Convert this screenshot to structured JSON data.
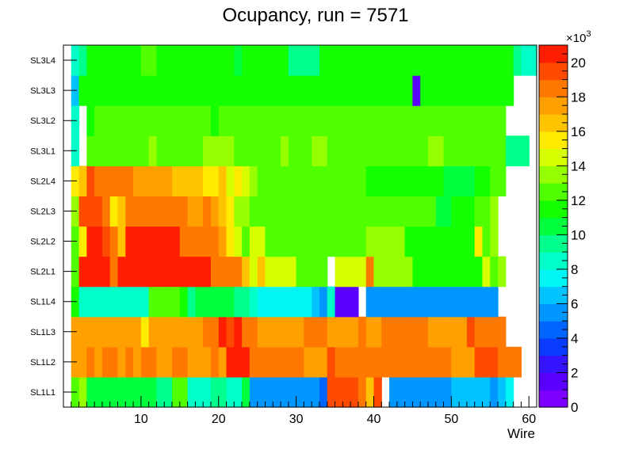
{
  "chart_data": {
    "type": "heatmap",
    "title": "Ocupancy, run = 7571",
    "xlabel": "Wire",
    "ylabel": "",
    "x_range": [
      0,
      61
    ],
    "x_ticks": [
      10,
      20,
      30,
      40,
      50,
      60
    ],
    "y_categories": [
      "SL1L1",
      "SL1L2",
      "SL1L3",
      "SL1L4",
      "SL2L1",
      "SL2L2",
      "SL2L3",
      "SL2L4",
      "SL3L1",
      "SL3L2",
      "SL3L3",
      "SL3L4"
    ],
    "z_range": [
      0,
      21
    ],
    "z_ticks": [
      0,
      2,
      4,
      6,
      8,
      10,
      12,
      14,
      16,
      18,
      20
    ],
    "z_exponent_label": "×10",
    "z_exponent_power": "3",
    "palette": [
      "#7d00ff",
      "#5a00ff",
      "#3714ff",
      "#0a3cff",
      "#0064ff",
      "#0096ff",
      "#00c3ff",
      "#00f5f5",
      "#00ffc8",
      "#00ff8c",
      "#00ff3c",
      "#14ff00",
      "#50ff00",
      "#96ff00",
      "#d7ff00",
      "#ffeb00",
      "#ffc300",
      "#ffa000",
      "#ff7800",
      "#ff4b00",
      "#ff1e00"
    ],
    "rows": {
      "SL1L1": [
        12.5,
        13.5,
        10.2,
        10.2,
        10.2,
        10.2,
        10.2,
        10.2,
        10.2,
        10.2,
        10.2,
        9.6,
        9.6,
        12.5,
        12.5,
        8.2,
        8.2,
        8.2,
        9.6,
        9.6,
        8.2,
        8.2,
        10.2,
        5.8,
        5.8,
        5.8,
        5.8,
        5.8,
        5.8,
        5.8,
        5.8,
        5.8,
        4.8,
        19,
        19,
        19,
        19,
        18,
        16.5,
        19,
        null,
        5.2,
        5.2,
        5.2,
        5.2,
        5.2,
        5.2,
        5.2,
        5.2,
        6.5,
        6.5,
        6.5,
        6.5,
        6.5,
        5.2,
        6.5,
        7.5,
        null,
        null,
        null
      ],
      "SL1L2": [
        17,
        17,
        18,
        17,
        18,
        18,
        17,
        18,
        17,
        18,
        18,
        17,
        17,
        18,
        18,
        17,
        17,
        17,
        18,
        17,
        20,
        20,
        20,
        18,
        18,
        18,
        18,
        18,
        18,
        18,
        17,
        17.5,
        17.5,
        19,
        18,
        18,
        18,
        18,
        18,
        18,
        18,
        18,
        18,
        18,
        18,
        18,
        18,
        18,
        18,
        17,
        17,
        17,
        19,
        19,
        19,
        18,
        18,
        18,
        null,
        null,
        null
      ],
      "SL1L3": [
        17,
        17,
        17,
        17,
        17,
        17,
        17,
        17,
        17,
        15.5,
        17,
        17,
        17,
        17,
        17,
        17,
        17,
        18,
        18,
        20,
        19,
        20,
        18,
        18,
        17,
        17,
        17,
        17,
        17,
        17,
        18,
        18,
        18,
        17,
        17,
        17,
        17,
        18,
        17,
        17,
        18,
        18,
        18,
        18,
        18,
        18,
        17,
        17,
        17,
        17,
        17,
        19,
        18,
        18,
        18,
        18,
        null,
        null,
        null
      ],
      "SL1L4": [
        11.5,
        8.5,
        8.5,
        8,
        8,
        8,
        8,
        8,
        8,
        8,
        12.5,
        12.5,
        12.5,
        12.5,
        11,
        9.6,
        10.5,
        10.5,
        10.5,
        10,
        10,
        9,
        9,
        8.5,
        7,
        7,
        7,
        7,
        7,
        7,
        7,
        6,
        5.8,
        8,
        1,
        1,
        1,
        null,
        5.5,
        5.5,
        5.5,
        5.5,
        5.5,
        5.5,
        5.5,
        5.5,
        5.5,
        5.5,
        5.5,
        5.5,
        5.5,
        5.5,
        5.5,
        5.5,
        5.5,
        null,
        null,
        null,
        null
      ],
      "SL2L1": [
        12.5,
        20,
        20,
        20,
        20,
        18,
        20,
        20,
        20,
        20,
        20,
        20,
        20,
        20,
        20,
        20,
        20,
        20,
        18,
        18,
        18,
        18,
        16.5,
        14.5,
        16.5,
        14.5,
        14.5,
        14.5,
        14,
        12.5,
        12.5,
        12.5,
        12.5,
        null,
        14.5,
        14.5,
        14.5,
        14.5,
        18,
        13.5,
        13.5,
        13.5,
        13.5,
        13.5,
        11.5,
        11.5,
        11.5,
        11.5,
        11.5,
        11.5,
        11.5,
        11.5,
        11.5,
        14.5,
        12.5,
        13.5,
        null,
        null,
        null,
        null
      ],
      "SL2L2": [
        12.5,
        15.5,
        20,
        20,
        19,
        18,
        16.5,
        20,
        20,
        20,
        20,
        20,
        20,
        20,
        18,
        18,
        18,
        18,
        18,
        17,
        15.5,
        14,
        12.5,
        14,
        14,
        12.5,
        12.5,
        12.5,
        12.5,
        12.5,
        12.5,
        12.5,
        12.5,
        12.5,
        12.5,
        12.5,
        12.5,
        12.5,
        13.5,
        13.5,
        13.5,
        13.5,
        13.5,
        11.5,
        11.5,
        11.5,
        11.5,
        11.5,
        11.5,
        11.5,
        11.5,
        11.5,
        15.5,
        12.5,
        13.5,
        null,
        null,
        null,
        null,
        null
      ],
      "SL2L3": [
        13.5,
        19,
        19,
        19,
        18,
        15.5,
        16.5,
        18,
        18,
        18,
        18,
        18,
        18,
        18,
        18,
        17,
        17,
        18,
        17,
        16,
        15.5,
        13.5,
        13.5,
        12.5,
        12.5,
        12.5,
        12.5,
        12.5,
        12.5,
        12.5,
        12.5,
        12.5,
        12.5,
        12.5,
        12.5,
        12.5,
        12.5,
        12.5,
        12.5,
        12.5,
        12.5,
        12.5,
        12.5,
        12.5,
        12.5,
        12.5,
        12.5,
        10.5,
        10.5,
        11,
        11,
        11,
        12.5,
        12.5,
        13.5,
        null,
        null,
        null,
        null,
        null
      ],
      "SL2L4": [
        15.5,
        16.5,
        19,
        18,
        18,
        18,
        18,
        18,
        17,
        17,
        17,
        17,
        17,
        16,
        16,
        16,
        16,
        15.5,
        15.5,
        16,
        14,
        15.5,
        14,
        13.5,
        12.5,
        12.5,
        12.5,
        12.5,
        12.5,
        12.5,
        12.5,
        12.5,
        12.5,
        12.5,
        12.5,
        12.5,
        12.5,
        12.5,
        11.5,
        11.5,
        11.5,
        11.5,
        11.5,
        11.5,
        11.5,
        11.5,
        11.5,
        11.5,
        10,
        10,
        10,
        10,
        11.5,
        11.5,
        12,
        12.5,
        null,
        null,
        null,
        null
      ],
      "SL3L1": [
        8.5,
        null,
        12.5,
        12.5,
        12.5,
        12.5,
        12.5,
        12.5,
        12.5,
        12.5,
        13.5,
        12.5,
        12.5,
        12.5,
        12.5,
        12.5,
        12.5,
        13.5,
        13.5,
        13.5,
        13.5,
        12.5,
        12.5,
        12.5,
        12.5,
        12.5,
        12.5,
        13.5,
        12.5,
        12.5,
        12.5,
        13.5,
        13.5,
        12.5,
        12.5,
        12.5,
        12.5,
        12.5,
        12.5,
        12.5,
        12.5,
        12.5,
        12.5,
        12.5,
        12.5,
        12.5,
        13.5,
        13.5,
        12.5,
        12.5,
        12.5,
        12.5,
        12.5,
        12.5,
        12.5,
        12.5,
        9,
        9,
        9,
        null
      ],
      "SL3L2": [
        8.5,
        null,
        11.5,
        12.5,
        12.5,
        12.5,
        12.5,
        12.5,
        12.5,
        12.5,
        12.5,
        12.5,
        12.5,
        12.5,
        12.5,
        12.5,
        12.5,
        12.5,
        11.5,
        12.5,
        12.5,
        12.5,
        12.5,
        12.5,
        12.5,
        12.5,
        12.5,
        12.5,
        12.5,
        12.5,
        12.5,
        12.5,
        12.5,
        12.5,
        12.5,
        12.5,
        12.5,
        12.5,
        12.5,
        12.5,
        12.5,
        12.5,
        12.5,
        12.5,
        12.5,
        12.5,
        12.5,
        12.5,
        12.5,
        12.5,
        12.5,
        12.5,
        12.5,
        12.5,
        12.5,
        12.5,
        null,
        null,
        null,
        null
      ],
      "SL3L3": [
        6.5,
        11,
        11.5,
        11.5,
        11.5,
        11.5,
        11.5,
        11.5,
        11.5,
        11.5,
        11.5,
        11.5,
        11.5,
        11.5,
        11.5,
        11.5,
        11.5,
        11.5,
        11.5,
        11.5,
        11.5,
        11.5,
        11.5,
        11.5,
        11.5,
        11.5,
        11.5,
        11.5,
        11.5,
        11.5,
        11.5,
        11.5,
        11.5,
        11.5,
        11.5,
        11.5,
        11.5,
        11.5,
        11.5,
        11.5,
        11.5,
        11.5,
        11.5,
        11.5,
        1,
        11.5,
        11.5,
        11.5,
        11.5,
        11.5,
        11.5,
        11.5,
        11.5,
        11.5,
        11.5,
        11.5,
        11.5,
        null,
        null,
        null
      ],
      "SL3L4": [
        8.5,
        9.5,
        11,
        11.5,
        11.5,
        11,
        11.5,
        11.5,
        11,
        12.5,
        12.5,
        11.5,
        11.5,
        11.5,
        11.5,
        11.5,
        11.5,
        11.5,
        11.5,
        11.5,
        11.5,
        10.5,
        11.5,
        11.5,
        11.5,
        11.5,
        11.5,
        11.5,
        9.5,
        9.5,
        9.5,
        9.5,
        11.5,
        11.5,
        11.5,
        11.5,
        11.5,
        11.5,
        11.5,
        11.5,
        11.5,
        11.5,
        11.5,
        11,
        11.5,
        11.5,
        11.5,
        11.5,
        11.5,
        11.5,
        11.5,
        11.5,
        11.5,
        11.5,
        11.5,
        11.5,
        11.5,
        9.5,
        8.5,
        8.5
      ]
    }
  }
}
